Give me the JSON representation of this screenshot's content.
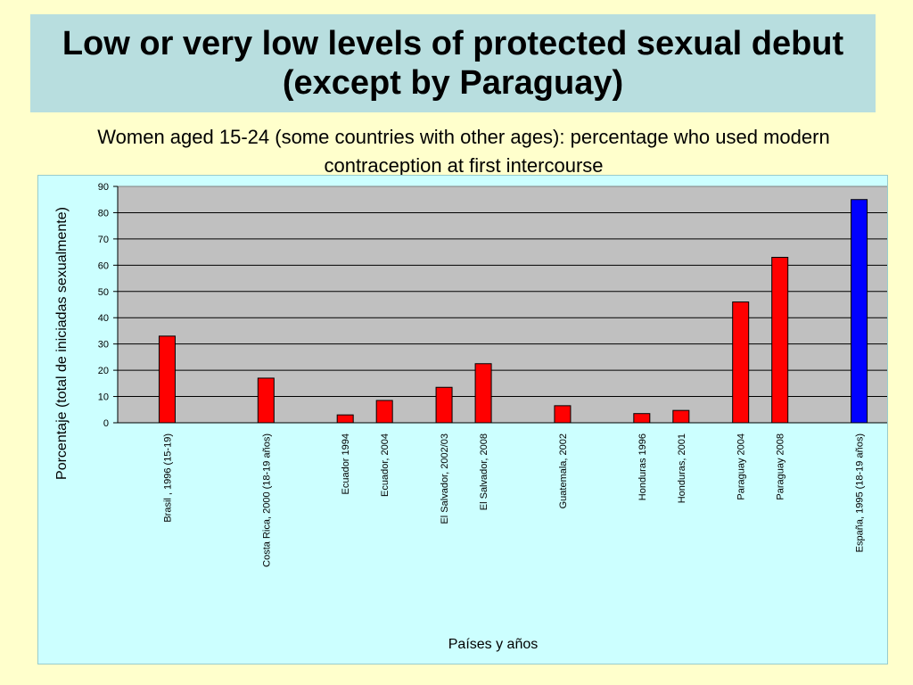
{
  "slide": {
    "title": "Low or very low levels of protected sexual debut (except by Paraguay)",
    "subtitle": "Women aged 15-24 (some countries with other ages): percentage who used modern contraception at first intercourse"
  },
  "colors": {
    "background": "#FFFFCC",
    "title_band": "#B8DEDF",
    "chart_area": "#CCFFFF",
    "plot_area": "#C0C0C0",
    "bar_red": "#FF0000",
    "bar_blue": "#0000FF"
  },
  "chart_data": {
    "type": "bar",
    "title": "",
    "xlabel": "Países y años",
    "ylabel": "Porcentaje (total de iniciadas sexualmente)",
    "ylim": [
      0,
      90
    ],
    "yticks": [
      0,
      10,
      20,
      30,
      40,
      50,
      60,
      70,
      80,
      90
    ],
    "grid": true,
    "legend": "none",
    "groups": [
      {
        "bars": [
          {
            "label": "Brasil , 1996 (15-19)",
            "value": 33,
            "color": "#FF0000"
          }
        ]
      },
      {
        "bars": [
          {
            "label": "Costa Rica, 2000 (18-19 años)",
            "value": 17,
            "color": "#FF0000"
          }
        ]
      },
      {
        "bars": [
          {
            "label": "Ecuador 1994",
            "value": 3,
            "color": "#FF0000"
          },
          {
            "label": "Ecuador, 2004",
            "value": 8.5,
            "color": "#FF0000"
          }
        ]
      },
      {
        "bars": [
          {
            "label": "El Salvador, 2002/03",
            "value": 13.5,
            "color": "#FF0000"
          },
          {
            "label": "El Salvador, 2008",
            "value": 22.5,
            "color": "#FF0000"
          }
        ]
      },
      {
        "bars": [
          {
            "label": "Guatemala, 2002",
            "value": 6.5,
            "color": "#FF0000"
          }
        ]
      },
      {
        "bars": [
          {
            "label": "Honduras 1996",
            "value": 3.5,
            "color": "#FF0000"
          },
          {
            "label": "Honduras, 2001",
            "value": 4.7,
            "color": "#FF0000"
          }
        ]
      },
      {
        "bars": [
          {
            "label": "Paraguay 2004",
            "value": 46,
            "color": "#FF0000"
          },
          {
            "label": "Paraguay 2008",
            "value": 63,
            "color": "#FF0000"
          }
        ]
      },
      {
        "bars": [
          {
            "label": "España, 1995 (18-19 años)",
            "value": 85,
            "color": "#0000FF"
          }
        ]
      }
    ]
  }
}
